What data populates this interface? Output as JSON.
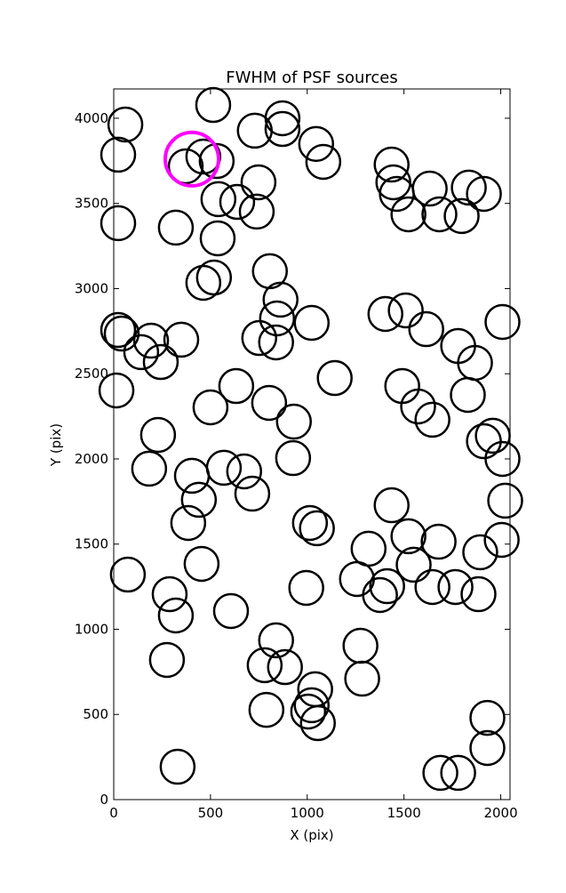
{
  "chart_data": {
    "type": "scatter",
    "title": "FWHM of PSF sources",
    "x_label": "X (pix)",
    "y_label": "Y (pix)",
    "xlim": [
      0,
      2048
    ],
    "ylim": [
      0,
      4172
    ],
    "xticks": [
      0,
      500,
      1000,
      1500,
      2000
    ],
    "yticks": [
      0,
      500,
      1000,
      1500,
      2000,
      2500,
      3000,
      3500,
      4000
    ],
    "series": [
      {
        "color": "#000000",
        "x": [
          60,
          23,
          514,
          729,
          872,
          872,
          1046,
          1083,
          463,
          372,
          532,
          1436,
          1445,
          1463,
          1633,
          1835,
          1913,
          1523,
          1683,
          1798,
          748,
          739,
          638,
          541,
          23,
          321,
          537,
          807,
          862,
          518,
          463,
          844,
          1023,
          752,
          839,
          23,
          41,
          193,
          142,
          243,
          349,
          14,
          1142,
          633,
          500,
          803,
          931,
          229,
          183,
          404,
          569,
          674,
          716,
          440,
          385,
          927,
          1014,
          1050,
          1404,
          1509,
          1615,
          1780,
          1867,
          2009,
          1491,
          1573,
          1647,
          1830,
          1913,
          1959,
          2009,
          2023,
          2005,
          1894,
          1679,
          1523,
          1436,
          1317,
          1550,
          1413,
          1376,
          1257,
          1647,
          1766,
          1885,
          995,
          73,
          454,
          289,
          321,
          606,
          275,
          839,
          780,
          885,
          789,
          1041,
          1023,
          1005,
          1055,
          1275,
          1284,
          1931,
          1931,
          1688,
          1780,
          330
        ],
        "y": [
          3963,
          3786,
          4078,
          3927,
          4000,
          3937,
          3849,
          3744,
          3775,
          3718,
          3749,
          3728,
          3624,
          3556,
          3587,
          3593,
          3556,
          3436,
          3436,
          3426,
          3624,
          3452,
          3509,
          3525,
          3384,
          3358,
          3295,
          3102,
          2935,
          3065,
          3034,
          2825,
          2799,
          2710,
          2684,
          2757,
          2736,
          2694,
          2627,
          2569,
          2700,
          2402,
          2475,
          2428,
          2303,
          2329,
          2219,
          2141,
          1943,
          1901,
          1948,
          1927,
          1796,
          1760,
          1624,
          2005,
          1624,
          1593,
          2851,
          2872,
          2762,
          2663,
          2564,
          2804,
          2428,
          2308,
          2230,
          2376,
          2104,
          2136,
          2000,
          1755,
          1525,
          1452,
          1514,
          1546,
          1728,
          1473,
          1379,
          1253,
          1201,
          1295,
          1248,
          1248,
          1206,
          1243,
          1321,
          1384,
          1206,
          1081,
          1107,
          820,
          935,
          789,
          778,
          527,
          648,
          554,
          517,
          449,
          903,
          710,
          480,
          303,
          157,
          157,
          193
        ]
      },
      {
        "color": "#ff00ff",
        "x": [
          404
        ],
        "y": [
          3760
        ]
      }
    ]
  }
}
